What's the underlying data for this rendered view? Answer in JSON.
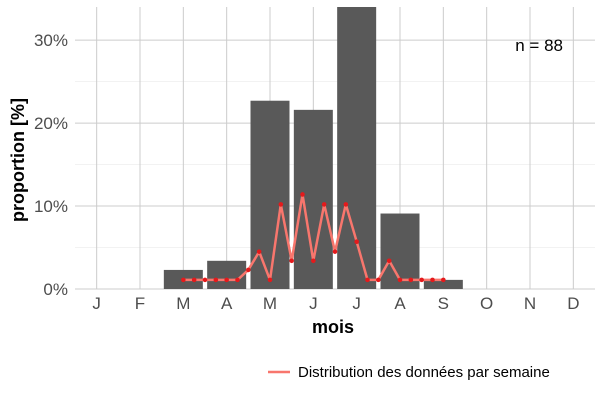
{
  "chart_data": {
    "type": "bar",
    "xlabel": "mois",
    "ylabel": "proportion [%]",
    "categories": [
      "J",
      "F",
      "M",
      "A",
      "M",
      "J",
      "J",
      "A",
      "S",
      "O",
      "N",
      "D"
    ],
    "values": [
      0,
      0,
      2.3,
      3.4,
      22.7,
      21.6,
      34.1,
      9.1,
      1.1,
      0,
      0,
      0
    ],
    "ylim": [
      0,
      34
    ],
    "yticks": [
      0,
      10,
      20,
      30
    ],
    "ytick_labels": [
      "0%",
      "10%",
      "20%",
      "30%"
    ],
    "grid": true,
    "annotation": "n = 88",
    "bar_color": "#595959",
    "line_series": {
      "name": "Distribution des données par semaine",
      "color": "#f8766d",
      "point_color": "#e41a1c",
      "x": [
        3.0,
        3.25,
        3.5,
        3.75,
        4.0,
        4.25,
        4.5,
        4.75,
        5.0,
        5.25,
        5.5,
        5.75,
        6.0,
        6.25,
        6.5,
        6.75,
        7.0,
        7.25,
        7.5,
        7.75,
        8.0,
        8.25,
        8.5,
        8.75,
        9.0
      ],
      "y": [
        1.1,
        1.1,
        1.1,
        1.1,
        1.1,
        1.1,
        2.3,
        4.5,
        1.1,
        10.2,
        3.4,
        11.4,
        3.4,
        10.2,
        4.5,
        10.2,
        5.7,
        1.1,
        1.1,
        3.4,
        1.1,
        1.1,
        1.1,
        1.1,
        1.1
      ]
    },
    "legend": {
      "position": "bottom-right",
      "entries": [
        "Distribution des données par semaine"
      ]
    }
  }
}
